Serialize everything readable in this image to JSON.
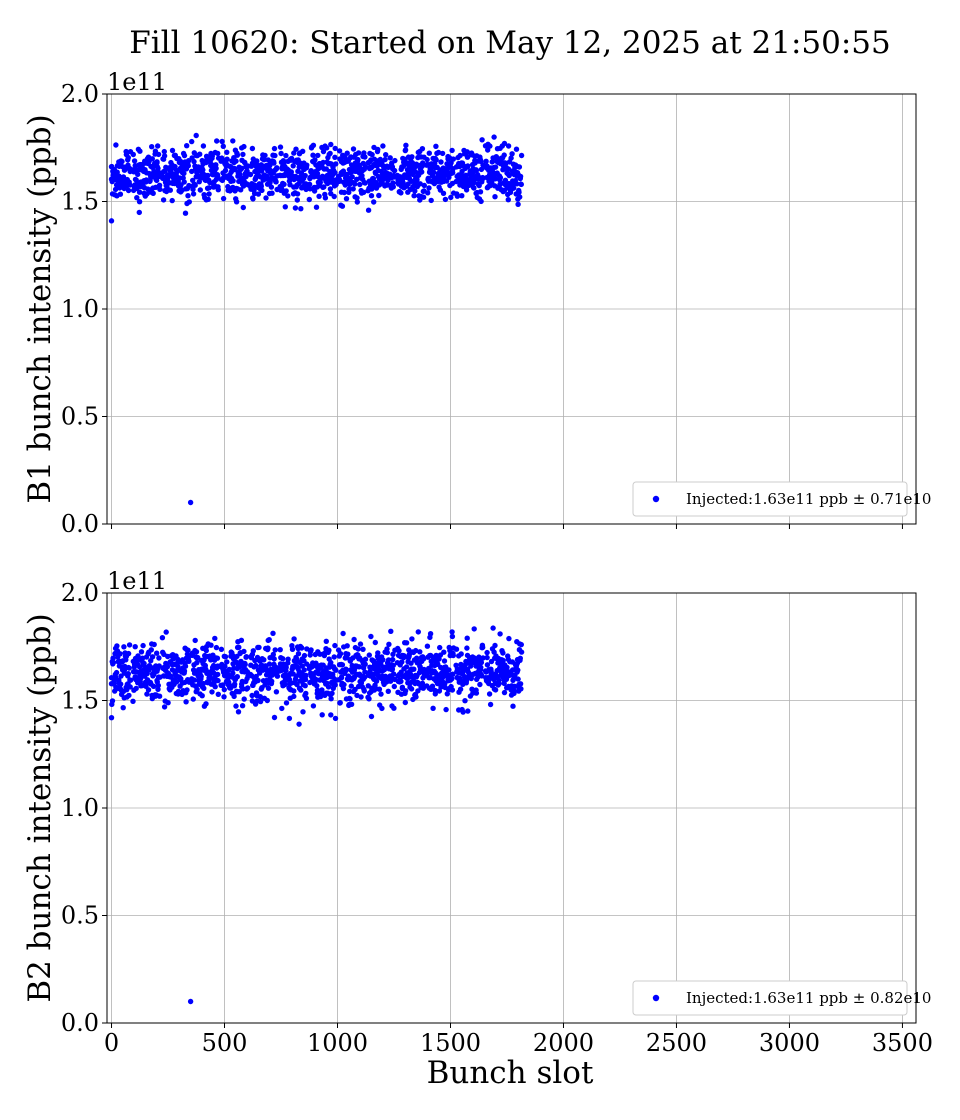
{
  "colors": {
    "series": "#0000ff",
    "grid": "#b0b0b0",
    "axis": "#000000",
    "background": "#ffffff"
  },
  "chart_data": {
    "type": "scatter",
    "title": "Fill 10620: Started on May 12, 2025 at 21:50:55",
    "xlabel": "Bunch slot",
    "xlim": [
      -20,
      3560
    ],
    "xticks": [
      0,
      500,
      1000,
      1500,
      2000,
      2500,
      3000,
      3500
    ],
    "shared_x": true,
    "grid": true,
    "legend_position": "lower right",
    "panels": [
      {
        "ylabel": "B1 bunch intensity (ppb)",
        "ylim": [
          0,
          200000000000.0
        ],
        "yticks": [
          0.0,
          0.5,
          1.0,
          1.5,
          2.0
        ],
        "offset_label": "1e11",
        "series": [
          {
            "name": "Injected:1.63e11 ppb ± 0.71e10",
            "marker": "circle",
            "mean": 163000000000.0,
            "std": 7100000000.0,
            "n_bunches": 1296,
            "slot_range": [
              0,
              1815
            ],
            "trains": [
              [
                0,
                85
              ],
              [
                95,
                215
              ],
              [
                225,
                345
              ],
              [
                355,
                475
              ],
              [
                485,
                605
              ],
              [
                615,
                735
              ],
              [
                745,
                865
              ],
              [
                875,
                995
              ],
              [
                1005,
                1125
              ],
              [
                1135,
                1255
              ],
              [
                1265,
                1385
              ],
              [
                1395,
                1515
              ],
              [
                1525,
                1645
              ],
              [
                1655,
                1815
              ]
            ],
            "outliers": [
              {
                "slot": 350,
                "value": 10000000000.0
              },
              {
                "slot": 0,
                "value": 141000000000.0
              }
            ]
          }
        ]
      },
      {
        "ylabel": "B2 bunch intensity (ppb)",
        "ylim": [
          0,
          200000000000.0
        ],
        "yticks": [
          0.0,
          0.5,
          1.0,
          1.5,
          2.0
        ],
        "offset_label": "1e11",
        "series": [
          {
            "name": "Injected:1.63e11 ppb ± 0.82e10",
            "marker": "circle",
            "mean": 163000000000.0,
            "std": 8200000000.0,
            "n_bunches": 1296,
            "slot_range": [
              0,
              1815
            ],
            "trains": [
              [
                0,
                85
              ],
              [
                95,
                215
              ],
              [
                225,
                345
              ],
              [
                355,
                475
              ],
              [
                485,
                605
              ],
              [
                615,
                735
              ],
              [
                745,
                865
              ],
              [
                875,
                995
              ],
              [
                1005,
                1125
              ],
              [
                1135,
                1255
              ],
              [
                1265,
                1385
              ],
              [
                1395,
                1515
              ],
              [
                1525,
                1645
              ],
              [
                1655,
                1815
              ]
            ],
            "outliers": [
              {
                "slot": 350,
                "value": 10000000000.0
              },
              {
                "slot": 0,
                "value": 142000000000.0
              },
              {
                "slot": 830,
                "value": 139000000000.0
              }
            ]
          }
        ]
      }
    ]
  }
}
